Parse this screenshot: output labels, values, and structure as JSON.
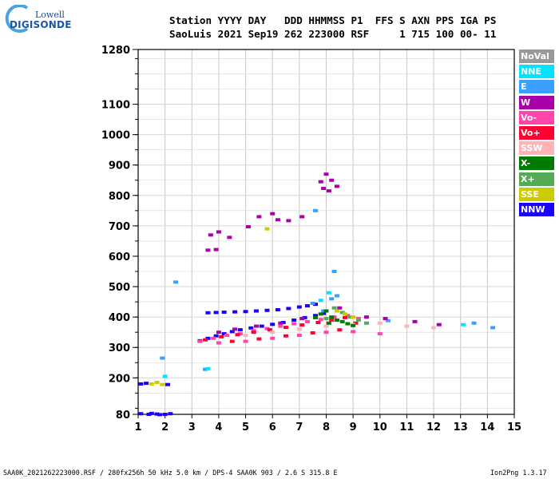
{
  "logo": {
    "line1": "Lowell",
    "line2": "DIGISONDE"
  },
  "header": {
    "line1": "Station YYYY DAY   DDD HHMMSS P1  FFS S AXN PPS IGA PS",
    "line2": "SaoLuis 2021 Sep19 262 223000 RSF     1 715 100 00- 11"
  },
  "legend": [
    {
      "label": "NoVal",
      "color": "#999999"
    },
    {
      "label": "NNE",
      "color": "#00e5ff"
    },
    {
      "label": "E",
      "color": "#3aa0ff"
    },
    {
      "label": "W",
      "color": "#aa00aa"
    },
    {
      "label": "Vo-",
      "color": "#ff44aa"
    },
    {
      "label": "Vo+",
      "color": "#ff0033"
    },
    {
      "label": "SSW",
      "color": "#ffb3b3"
    },
    {
      "label": "X-",
      "color": "#007a00"
    },
    {
      "label": "X+",
      "color": "#55aa55"
    },
    {
      "label": "SSE",
      "color": "#cccc00"
    },
    {
      "label": "NNW",
      "color": "#1a00ff"
    }
  ],
  "footer": {
    "left": "SAA0K_2021262223000.RSF / 280fx256h 50 kHz 5.0 km / DPS-4 SAA0K 903 / 2.6 S 315.8 E",
    "right": "Ion2Png 1.3.17"
  },
  "chart_data": {
    "type": "scatter",
    "xlim": [
      1,
      15
    ],
    "ylim": [
      80,
      1280
    ],
    "x_ticks": [
      1,
      2,
      3,
      4,
      5,
      6,
      7,
      8,
      9,
      10,
      11,
      12,
      13,
      14,
      15
    ],
    "y_ticks": [
      80,
      200,
      300,
      400,
      500,
      600,
      700,
      800,
      900,
      1000,
      1100,
      1280
    ],
    "grid": true,
    "series": [
      {
        "name": "NNW",
        "color": "#1a00ff",
        "points": [
          [
            1.1,
            82
          ],
          [
            1.4,
            80
          ],
          [
            1.7,
            81
          ],
          [
            2.0,
            80
          ],
          [
            2.2,
            82
          ],
          [
            1.8,
            79
          ],
          [
            1.5,
            83
          ],
          [
            3.3,
            322
          ],
          [
            3.6,
            330
          ],
          [
            3.9,
            338
          ],
          [
            4.2,
            345
          ],
          [
            4.5,
            352
          ],
          [
            4.8,
            358
          ],
          [
            5.2,
            364
          ],
          [
            5.6,
            370
          ],
          [
            6.0,
            376
          ],
          [
            6.4,
            382
          ],
          [
            6.8,
            390
          ],
          [
            7.2,
            398
          ],
          [
            7.6,
            405
          ],
          [
            7.9,
            412
          ],
          [
            3.6,
            414
          ],
          [
            3.9,
            415
          ],
          [
            4.2,
            416
          ],
          [
            4.6,
            417
          ],
          [
            5.0,
            418
          ],
          [
            5.4,
            420
          ],
          [
            5.8,
            422
          ],
          [
            6.2,
            424
          ],
          [
            6.6,
            428
          ],
          [
            7.0,
            433
          ],
          [
            7.3,
            437
          ],
          [
            7.6,
            442
          ],
          [
            1.1,
            180
          ],
          [
            1.3,
            182
          ],
          [
            2.1,
            178
          ]
        ]
      },
      {
        "name": "E",
        "color": "#3aa0ff",
        "points": [
          [
            2.4,
            515
          ],
          [
            1.9,
            265
          ],
          [
            3.5,
            228
          ],
          [
            8.3,
            550
          ],
          [
            7.6,
            750
          ],
          [
            7.9,
            420
          ],
          [
            8.2,
            460
          ],
          [
            8.4,
            470
          ],
          [
            7.5,
            445
          ],
          [
            10.3,
            388
          ],
          [
            13.5,
            380
          ],
          [
            14.2,
            365
          ]
        ]
      },
      {
        "name": "NNE",
        "color": "#00e5ff",
        "points": [
          [
            2.0,
            205
          ],
          [
            3.6,
            230
          ],
          [
            8.1,
            480
          ],
          [
            7.8,
            455
          ],
          [
            13.1,
            375
          ]
        ]
      },
      {
        "name": "W",
        "color": "#aa00aa",
        "points": [
          [
            3.6,
            620
          ],
          [
            3.9,
            622
          ],
          [
            3.7,
            670
          ],
          [
            4.0,
            680
          ],
          [
            4.4,
            662
          ],
          [
            5.1,
            697
          ],
          [
            5.5,
            730
          ],
          [
            6.0,
            740
          ],
          [
            6.2,
            720
          ],
          [
            6.6,
            717
          ],
          [
            7.1,
            730
          ],
          [
            7.8,
            845
          ],
          [
            8.0,
            870
          ],
          [
            8.2,
            850
          ],
          [
            8.4,
            830
          ],
          [
            7.9,
            823
          ],
          [
            8.1,
            815
          ],
          [
            4.0,
            350
          ],
          [
            4.6,
            360
          ],
          [
            5.4,
            370
          ],
          [
            6.3,
            380
          ],
          [
            7.1,
            395
          ],
          [
            8.5,
            430
          ],
          [
            9.5,
            400
          ],
          [
            10.2,
            395
          ],
          [
            11.3,
            385
          ],
          [
            12.2,
            375
          ]
        ]
      },
      {
        "name": "Vo-",
        "color": "#ff44aa",
        "points": [
          [
            3.3,
            320
          ],
          [
            3.8,
            330
          ],
          [
            4.3,
            340
          ],
          [
            4.8,
            345
          ],
          [
            5.3,
            355
          ],
          [
            5.8,
            362
          ],
          [
            6.3,
            370
          ],
          [
            6.8,
            378
          ],
          [
            7.3,
            385
          ],
          [
            7.8,
            392
          ],
          [
            8.3,
            400
          ],
          [
            8.8,
            405
          ],
          [
            9.2,
            395
          ],
          [
            4.0,
            315
          ],
          [
            5.0,
            320
          ],
          [
            6.0,
            330
          ],
          [
            7.0,
            340
          ],
          [
            8.0,
            350
          ],
          [
            9.0,
            352
          ],
          [
            10.0,
            345
          ]
        ]
      },
      {
        "name": "Vo+",
        "color": "#ff0033",
        "points": [
          [
            3.5,
            325
          ],
          [
            4.1,
            335
          ],
          [
            4.7,
            342
          ],
          [
            5.3,
            350
          ],
          [
            5.9,
            358
          ],
          [
            6.5,
            366
          ],
          [
            7.1,
            374
          ],
          [
            7.7,
            382
          ],
          [
            8.2,
            390
          ],
          [
            8.7,
            398
          ],
          [
            9.1,
            380
          ],
          [
            4.5,
            320
          ],
          [
            5.5,
            328
          ],
          [
            6.5,
            338
          ],
          [
            7.5,
            348
          ],
          [
            8.5,
            358
          ]
        ]
      },
      {
        "name": "SSW",
        "color": "#ffb3b3",
        "points": [
          [
            5.0,
            340
          ],
          [
            6.0,
            350
          ],
          [
            7.0,
            360
          ],
          [
            8.0,
            370
          ],
          [
            9.0,
            375
          ],
          [
            10.0,
            380
          ],
          [
            11.0,
            370
          ],
          [
            12.0,
            365
          ]
        ]
      },
      {
        "name": "X-",
        "color": "#007a00",
        "points": [
          [
            7.8,
            410
          ],
          [
            8.0,
            420
          ],
          [
            8.2,
            400
          ],
          [
            8.4,
            390
          ],
          [
            8.6,
            385
          ],
          [
            8.8,
            378
          ],
          [
            9.0,
            372
          ],
          [
            7.6,
            398
          ],
          [
            8.1,
            380
          ]
        ]
      },
      {
        "name": "X+",
        "color": "#55aa55",
        "points": [
          [
            8.3,
            430
          ],
          [
            8.6,
            415
          ],
          [
            8.9,
            400
          ],
          [
            9.2,
            390
          ],
          [
            9.5,
            380
          ],
          [
            8.0,
            395
          ]
        ]
      },
      {
        "name": "SSE",
        "color": "#cccc00",
        "points": [
          [
            1.5,
            180
          ],
          [
            1.7,
            185
          ],
          [
            1.9,
            178
          ],
          [
            8.4,
            420
          ],
          [
            8.7,
            410
          ],
          [
            9.0,
            400
          ],
          [
            5.8,
            690
          ]
        ]
      }
    ]
  }
}
